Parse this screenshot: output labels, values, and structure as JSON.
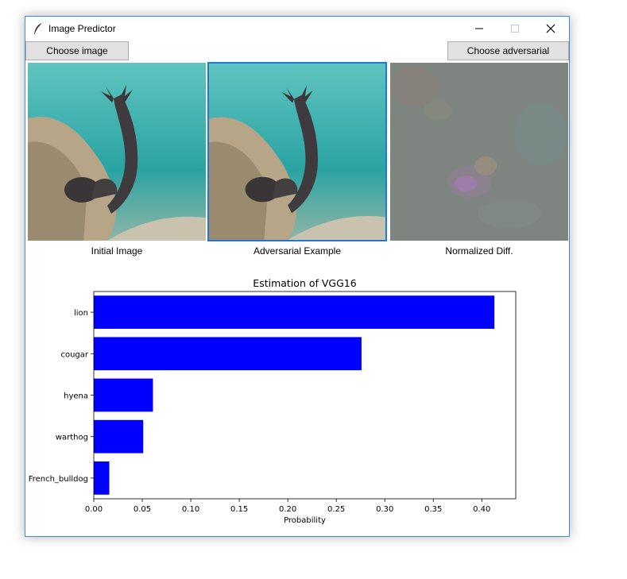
{
  "window": {
    "title": "Image Predictor"
  },
  "toolbar": {
    "choose_image_label": "Choose image",
    "choose_adversarial_label": "Choose adversarial"
  },
  "images": [
    {
      "caption": "Initial Image"
    },
    {
      "caption": "Adversarial Example"
    },
    {
      "caption": "Normalized Diff."
    }
  ],
  "colors": {
    "bar": "#0000ff",
    "selection_border": "#1e7ad6"
  },
  "chart_data": {
    "type": "bar",
    "orientation": "horizontal",
    "title": "Estimation of VGG16",
    "xlabel": "Probability",
    "categories": [
      "lion",
      "cougar",
      "hyena",
      "warthog",
      "French_bulldog"
    ],
    "values": [
      0.413,
      0.276,
      0.061,
      0.051,
      0.016
    ],
    "xlim": [
      0,
      0.435
    ],
    "xticks": [
      "0.00",
      "0.05",
      "0.10",
      "0.15",
      "0.20",
      "0.25",
      "0.30",
      "0.35",
      "0.40"
    ],
    "grid": false
  }
}
